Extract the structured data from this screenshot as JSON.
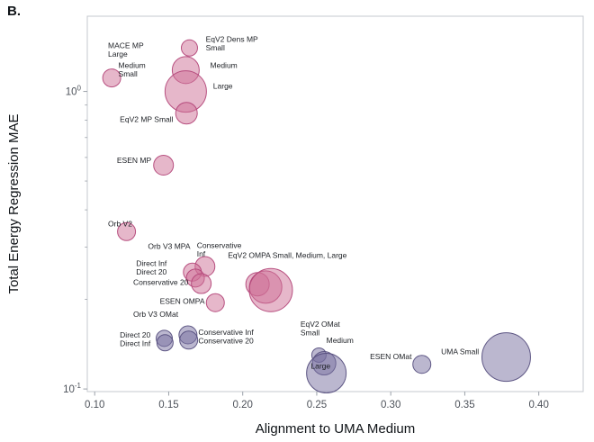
{
  "panel_label": "B.",
  "chart_data": {
    "type": "scatter",
    "subtype": "bubble",
    "title": "",
    "xlabel": "Alignment to UMA Medium",
    "ylabel": "Total Energy Regression MAE",
    "xlim": [
      0.095,
      0.43
    ],
    "ylim": [
      0.098,
      1.79
    ],
    "y_scale": "log",
    "grid": false,
    "legend": "none",
    "xticks": [
      0.1,
      0.15,
      0.2,
      0.25,
      0.3,
      0.35,
      0.4
    ],
    "yticks": [
      {
        "value": 0.1,
        "base": "10",
        "exp": "-1"
      },
      {
        "value": 1.0,
        "base": "10",
        "exp": "0"
      }
    ],
    "style": {
      "background": "#ffffff",
      "frame_color": "#c6c9cf",
      "tick_color": "#9aa0a8",
      "tick_label_color": "#4d525a",
      "axis_label_color": "#101418",
      "annotation_color": "#1c1f24"
    },
    "groups": {
      "mp": {
        "fill": "#ce6f96",
        "fill_opacity": 0.5,
        "stroke": "#b4487a"
      },
      "omat": {
        "fill": "#776fa0",
        "fill_opacity": 0.5,
        "stroke": "#57507f"
      }
    },
    "points": [
      {
        "label": "MACE MP Small/Medium/Large",
        "group": "mp",
        "x": 0.1115,
        "y": 1.11,
        "r": 10
      },
      {
        "label": "EqV2 Dens MP Small",
        "group": "mp",
        "x": 0.164,
        "y": 1.4,
        "r": 9
      },
      {
        "label": "EqV2 Dens MP Medium",
        "group": "mp",
        "x": 0.1615,
        "y": 1.18,
        "r": 15
      },
      {
        "label": "EqV2 Dens MP Large",
        "group": "mp",
        "x": 0.1615,
        "y": 1.0,
        "r": 23
      },
      {
        "label": "EqV2 MP Small",
        "group": "mp",
        "x": 0.162,
        "y": 0.845,
        "r": 12
      },
      {
        "label": "ESEN MP",
        "group": "mp",
        "x": 0.1465,
        "y": 0.565,
        "r": 11
      },
      {
        "label": "Orb V2",
        "group": "mp",
        "x": 0.1215,
        "y": 0.338,
        "r": 10
      },
      {
        "label": "Orb V3 MPA Conservative Inf",
        "group": "mp",
        "x": 0.1745,
        "y": 0.258,
        "r": 11
      },
      {
        "label": "Orb V3 MPA Direct Inf",
        "group": "mp",
        "x": 0.166,
        "y": 0.247,
        "r": 10
      },
      {
        "label": "Orb V3 MPA Direct 20",
        "group": "mp",
        "x": 0.168,
        "y": 0.236,
        "r": 10
      },
      {
        "label": "Orb V3 MPA Conservative 20",
        "group": "mp",
        "x": 0.172,
        "y": 0.226,
        "r": 11
      },
      {
        "label": "EqV2 OMPA Small",
        "group": "mp",
        "x": 0.21,
        "y": 0.225,
        "r": 13
      },
      {
        "label": "EqV2 OMPA Medium",
        "group": "mp",
        "x": 0.2155,
        "y": 0.22,
        "r": 18
      },
      {
        "label": "EqV2 OMPA Large",
        "group": "mp",
        "x": 0.219,
        "y": 0.215,
        "r": 24
      },
      {
        "label": "ESEN OMPA",
        "group": "mp",
        "x": 0.1815,
        "y": 0.195,
        "r": 10
      },
      {
        "label": "Orb V3 OMat Direct 20",
        "group": "omat",
        "x": 0.147,
        "y": 0.148,
        "r": 9
      },
      {
        "label": "Orb V3 OMat Direct Inf",
        "group": "omat",
        "x": 0.1475,
        "y": 0.143,
        "r": 9
      },
      {
        "label": "Orb V3 OMat Conservative Inf",
        "group": "omat",
        "x": 0.163,
        "y": 0.152,
        "r": 10
      },
      {
        "label": "Orb V3 OMat Conservative 20",
        "group": "omat",
        "x": 0.1635,
        "y": 0.146,
        "r": 10
      },
      {
        "label": "EqV2 OMat Small",
        "group": "omat",
        "x": 0.2515,
        "y": 0.13,
        "r": 8
      },
      {
        "label": "EqV2 OMat Medium",
        "group": "omat",
        "x": 0.255,
        "y": 0.122,
        "r": 13
      },
      {
        "label": "EqV2 OMat Large",
        "group": "omat",
        "x": 0.2565,
        "y": 0.113,
        "r": 22
      },
      {
        "label": "ESEN OMat",
        "group": "omat",
        "x": 0.321,
        "y": 0.121,
        "r": 10
      },
      {
        "label": "UMA Small",
        "group": "omat",
        "x": 0.378,
        "y": 0.128,
        "r": 27
      }
    ],
    "annotations": [
      {
        "text": "MACE MP\nLarge",
        "x": 0.109,
        "y": 1.4,
        "anchor": "start"
      },
      {
        "text": "Medium\nSmall",
        "x": 0.116,
        "y": 1.2,
        "anchor": "start"
      },
      {
        "text": "EqV2 Dens MP\nSmall",
        "x": 0.175,
        "y": 1.47,
        "anchor": "start"
      },
      {
        "text": "Medium",
        "x": 0.178,
        "y": 1.2,
        "anchor": "start"
      },
      {
        "text": "Large",
        "x": 0.18,
        "y": 1.02,
        "anchor": "start"
      },
      {
        "text": "EqV2 MP Small",
        "x": 0.117,
        "y": 0.79,
        "anchor": "start"
      },
      {
        "text": "ESEN MP",
        "x": 0.115,
        "y": 0.575,
        "anchor": "start"
      },
      {
        "text": "Orb V2",
        "x": 0.109,
        "y": 0.352,
        "anchor": "start"
      },
      {
        "text": "Orb V3 MPA",
        "x": 0.136,
        "y": 0.296,
        "anchor": "start"
      },
      {
        "text": "Conservative\nInf",
        "x": 0.169,
        "y": 0.298,
        "anchor": "start"
      },
      {
        "text": "Direct Inf\nDirect 20",
        "x": 0.128,
        "y": 0.259,
        "anchor": "start"
      },
      {
        "text": "Conservative 20",
        "x": 0.126,
        "y": 0.224,
        "anchor": "start"
      },
      {
        "text": "EqV2 OMPA Small, Medium, Large",
        "x": 0.19,
        "y": 0.276,
        "anchor": "start"
      },
      {
        "text": "ESEN OMPA",
        "x": 0.144,
        "y": 0.193,
        "anchor": "start"
      },
      {
        "text": "Orb V3 OMat",
        "x": 0.126,
        "y": 0.175,
        "anchor": "start"
      },
      {
        "text": "Direct 20\nDirect Inf",
        "x": 0.117,
        "y": 0.149,
        "anchor": "start"
      },
      {
        "text": "Conservative Inf\nConservative 20",
        "x": 0.17,
        "y": 0.152,
        "anchor": "start"
      },
      {
        "text": "EqV2 OMat\nSmall",
        "x": 0.239,
        "y": 0.162,
        "anchor": "start"
      },
      {
        "text": "Medium",
        "x": 0.2565,
        "y": 0.143,
        "anchor": "start"
      },
      {
        "text": "Large",
        "x": 0.246,
        "y": 0.117,
        "anchor": "start"
      },
      {
        "text": "ESEN OMat",
        "x": 0.286,
        "y": 0.126,
        "anchor": "start"
      },
      {
        "text": "UMA Small",
        "x": 0.334,
        "y": 0.131,
        "anchor": "start"
      }
    ]
  }
}
